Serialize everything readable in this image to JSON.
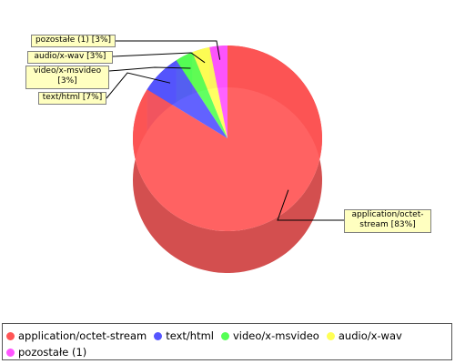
{
  "chart_data": {
    "type": "pie",
    "style": "3d",
    "categories": [
      "application/octet-stream",
      "text/html",
      "video/x-msvideo",
      "audio/x-wav",
      "pozostałe (1)"
    ],
    "values": [
      83,
      7,
      3,
      3,
      3
    ],
    "colors": [
      "#ff5555",
      "#5555ff",
      "#55ff55",
      "#ffff55",
      "#ff55ff"
    ],
    "labels": [
      "application/octet-stream [83%]",
      "text/html [7%]",
      "video/x-msvideo [3%]",
      "audio/x-wav [3%]",
      "pozostałe (1) [3%]"
    ],
    "legend_position": "bottom"
  },
  "legend": {
    "items": [
      {
        "label": "application/octet-stream",
        "color": "#ff5555"
      },
      {
        "label": "text/html",
        "color": "#5555ff"
      },
      {
        "label": "video/x-msvideo",
        "color": "#55ff55"
      },
      {
        "label": "audio/x-wav",
        "color": "#ffff55"
      },
      {
        "label": "pozostałe (1)",
        "color": "#ff55ff"
      }
    ]
  }
}
